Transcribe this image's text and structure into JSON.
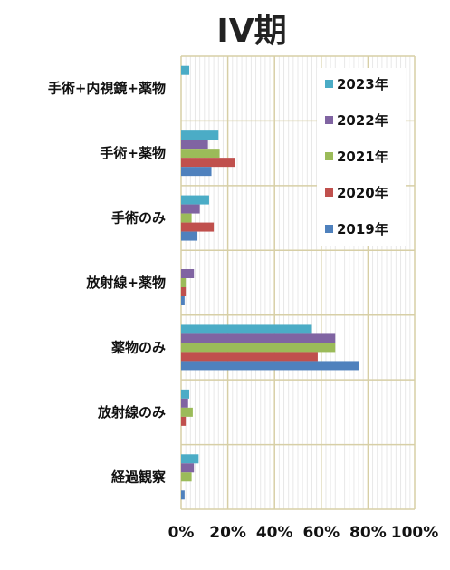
{
  "chart_data": {
    "type": "bar",
    "orientation": "horizontal",
    "title": "IV期",
    "categories": [
      "手術+内視鏡+薬物",
      "手術+薬物",
      "手術のみ",
      "放射線+薬物",
      "薬物のみ",
      "放射線のみ",
      "経過観察"
    ],
    "series": [
      {
        "name": "2023年",
        "color": "#4bacc6",
        "values": [
          3.5,
          16,
          12,
          0,
          56,
          3.5,
          7.5
        ]
      },
      {
        "name": "2022年",
        "color": "#8064a2",
        "values": [
          0,
          11.5,
          8,
          5.5,
          66,
          3,
          5.5
        ]
      },
      {
        "name": "2021年",
        "color": "#9bbb59",
        "values": [
          0,
          16.5,
          4.5,
          2,
          66,
          5,
          4.5
        ]
      },
      {
        "name": "2020年",
        "color": "#c0504d",
        "values": [
          0,
          23,
          14,
          2,
          58.5,
          2,
          0
        ]
      },
      {
        "name": "2019年",
        "color": "#4f81bd",
        "values": [
          0,
          13,
          7,
          1.5,
          76,
          0,
          1.5
        ]
      }
    ],
    "xlim": [
      0,
      100
    ],
    "xticks": [
      "0%",
      "20%",
      "40%",
      "60%",
      "80%",
      "100%"
    ],
    "xlabel": "",
    "ylabel": "",
    "grid": true,
    "legend_position": "top-right",
    "legend_order": [
      "2023年",
      "2022年",
      "2021年",
      "2020年",
      "2019年"
    ]
  }
}
